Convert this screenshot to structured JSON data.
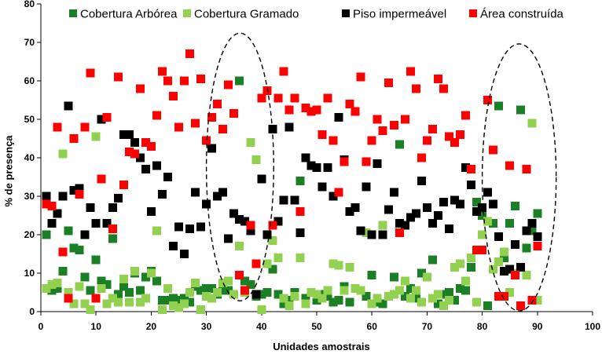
{
  "chart_data": {
    "type": "scatter",
    "marker": "square",
    "xlabel": "Unidades amostrais",
    "ylabel": "% de presença",
    "xlim": [
      0,
      100
    ],
    "ylim": [
      0,
      80
    ],
    "xticks": [
      0,
      10,
      20,
      30,
      40,
      50,
      60,
      70,
      80,
      90,
      100
    ],
    "yticks": [
      0,
      10,
      20,
      30,
      40,
      50,
      60,
      70,
      80
    ],
    "grid": false,
    "legend": "top",
    "x": [
      1,
      2,
      3,
      4,
      5,
      6,
      7,
      8,
      9,
      10,
      11,
      12,
      13,
      14,
      15,
      16,
      17,
      18,
      19,
      20,
      21,
      22,
      23,
      24,
      25,
      26,
      27,
      28,
      29,
      30,
      31,
      32,
      33,
      34,
      35,
      36,
      37,
      38,
      39,
      40,
      41,
      42,
      43,
      44,
      45,
      46,
      47,
      48,
      49,
      50,
      51,
      52,
      53,
      54,
      55,
      56,
      57,
      58,
      59,
      60,
      61,
      62,
      63,
      64,
      65,
      66,
      67,
      68,
      69,
      70,
      71,
      72,
      73,
      74,
      75,
      76,
      77,
      78,
      79,
      80,
      81,
      82,
      83,
      84,
      85,
      86,
      87,
      88,
      89,
      90
    ],
    "series": [
      {
        "name": "Cobertura Arbórea",
        "color": "#1B7F25",
        "values": [
          20,
          5.5,
          6,
          10.5,
          21,
          16.5,
          16,
          9,
          5.5,
          13.5,
          8,
          7,
          19,
          4.5,
          6.5,
          5,
          10,
          5.5,
          9,
          10.5,
          8,
          3,
          3,
          3.5,
          3,
          3.5,
          2.5,
          6.5,
          5.5,
          6,
          6,
          4.5,
          5.5,
          5.5,
          4.5,
          60,
          8,
          7,
          4,
          4.5,
          5,
          11,
          4.5,
          2,
          3,
          5,
          34,
          3.5,
          5,
          3,
          4.5,
          4,
          2.5,
          3,
          6.5,
          2.5,
          6,
          5.5,
          4,
          9.5,
          2.5,
          2,
          4,
          9,
          43.5,
          4,
          6,
          3.5,
          10,
          9,
          13.5,
          2,
          4.5,
          5,
          3,
          6,
          5.5,
          11.5,
          28.5,
          25,
          1.5,
          23,
          53.5,
          14,
          23,
          27.5,
          52.5,
          16.5,
          21,
          25.5
        ]
      },
      {
        "name": "Cobertura Gramado",
        "color": "#92D050",
        "values": [
          6,
          7,
          7.5,
          41,
          5,
          2,
          6.5,
          2,
          0.5,
          45.5,
          6,
          2,
          3.5,
          2.5,
          8.5,
          2.5,
          10.5,
          2.5,
          3.5,
          10,
          21,
          0.5,
          6,
          1.5,
          1,
          2,
          5,
          7.5,
          0.5,
          4,
          3.5,
          5,
          7.5,
          8,
          4.5,
          17,
          5,
          44,
          39.5,
          0.5,
          12.5,
          18.5,
          14,
          3.5,
          1.5,
          4,
          14,
          2,
          5,
          4.5,
          3.5,
          5.5,
          12.5,
          12,
          5.5,
          11.5,
          6,
          5.5,
          20.5,
          2,
          3.5,
          22.5,
          4,
          4.5,
          5.5,
          8,
          3.5,
          5.5,
          2.5,
          9,
          3.5,
          4.5,
          1.5,
          3,
          11.5,
          12.5,
          8,
          14,
          2.5,
          20,
          23.5,
          11,
          13,
          15.5,
          5,
          10,
          1.5,
          9.5,
          49,
          3
        ]
      },
      {
        "name": "Piso impermeável",
        "color": "#000000",
        "values": [
          30,
          23,
          25.5,
          30,
          53.5,
          31.5,
          32,
          20,
          27,
          23,
          50,
          23,
          27,
          29.5,
          46,
          46,
          44,
          40,
          37,
          26,
          38,
          30.5,
          35,
          17,
          22,
          15,
          21.5,
          31,
          22,
          28,
          42.5,
          30,
          31,
          19,
          25.5,
          24,
          23.5,
          21,
          4.5,
          34.5,
          20,
          47.5,
          23.5,
          29,
          48,
          29,
          20.5,
          40,
          38,
          37.5,
          32.5,
          37.5,
          30,
          50.5,
          39.5,
          26,
          27,
          21,
          32.5,
          20,
          38.5,
          20,
          26.5,
          31,
          23,
          22.5,
          24.5,
          25.5,
          34,
          27,
          23,
          25,
          28.5,
          21.5,
          29,
          28,
          37.5,
          33,
          26,
          27,
          31,
          28,
          19.5,
          10.5,
          11,
          17.5,
          11.5,
          21,
          23,
          19.5
        ]
      },
      {
        "name": "Área construída",
        "color": "#FF0000",
        "values": [
          28,
          27.5,
          48,
          15.5,
          3.5,
          45,
          30.5,
          48,
          62,
          3.5,
          34.5,
          50.5,
          21.5,
          61,
          33,
          41.5,
          41,
          58,
          44,
          43,
          51,
          62.5,
          60,
          56,
          48,
          60,
          67,
          49,
          60.5,
          44.5,
          50.5,
          54,
          47.5,
          59,
          51.5,
          9.5,
          5.5,
          22.5,
          12.5,
          55.5,
          57.5,
          22.5,
          55.5,
          62.5,
          52.5,
          55.5,
          26,
          53,
          52,
          52.5,
          46,
          55.5,
          44.5,
          31,
          39,
          54,
          52,
          61,
          39,
          44.5,
          50,
          47,
          59.5,
          48.5,
          20.5,
          50,
          62.5,
          58,
          40,
          44.5,
          47.5,
          60.5,
          58,
          45.5,
          44,
          46,
          51,
          37,
          16,
          16,
          55,
          42,
          4,
          4,
          38,
          9.5,
          1.5,
          37,
          3,
          17
        ]
      }
    ],
    "annotations": [
      {
        "shape": "dashed-ellipse",
        "x_range": [
          30,
          42.2
        ],
        "y_range": [
          2.8,
          72.4
        ]
      },
      {
        "shape": "dashed-ellipse",
        "x_range": [
          80,
          93.4
        ],
        "y_range": [
          0.2,
          69.6
        ]
      }
    ]
  }
}
